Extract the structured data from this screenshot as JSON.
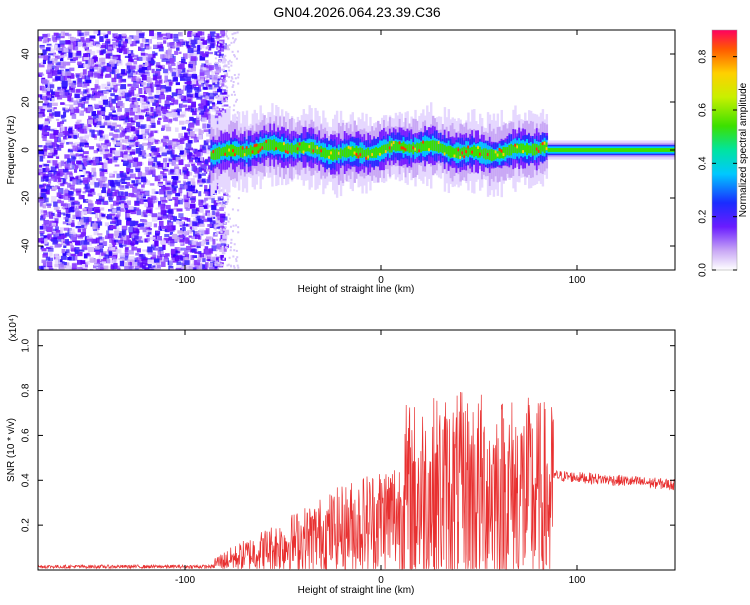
{
  "title": "GN04.2026.064.23.39.C36",
  "chart_data": [
    {
      "type": "heatmap",
      "xlabel": "Height of straight line (km)",
      "ylabel": "Frequency (Hz)",
      "xlim": [
        -175,
        150
      ],
      "ylim": [
        -50,
        50
      ],
      "xticks": [
        -100,
        0,
        100
      ],
      "yticks": [
        -40,
        -20,
        0,
        20,
        40
      ],
      "colorbar": {
        "label": "Normalized spectral amplitude",
        "range": [
          0,
          0.9
        ],
        "ticks": [
          "0.0",
          "0.2",
          "0.4",
          "0.6",
          "0.8"
        ]
      }
    },
    {
      "type": "line",
      "xlabel": "Height of straight line (km)",
      "ylabel": "SNR (10 * v/v)",
      "y_multiplier": "(x10⁴)",
      "xlim": [
        -175,
        150
      ],
      "ylim": [
        0,
        1.07
      ],
      "xticks": [
        -100,
        0,
        100
      ],
      "yticks": [
        0.2,
        0.4,
        0.6,
        0.8,
        1.0
      ],
      "series_color": "#e83030"
    }
  ]
}
